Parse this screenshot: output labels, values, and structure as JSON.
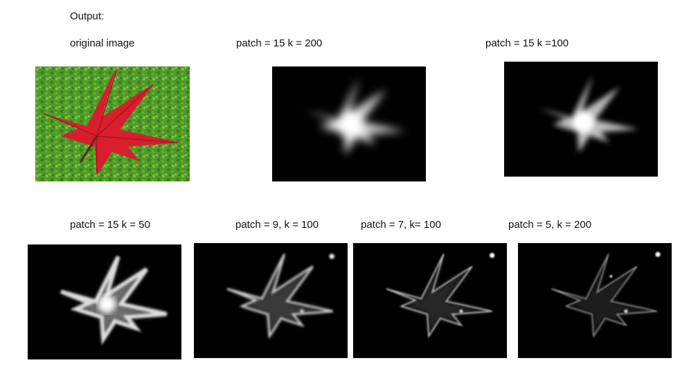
{
  "heading": "Output:",
  "panels": [
    {
      "id": "original",
      "label": "original image"
    },
    {
      "id": "p15k200",
      "label": "patch = 15 k = 200"
    },
    {
      "id": "p15k100",
      "label": "patch = 15 k =100"
    },
    {
      "id": "p15k50",
      "label": "patch = 15 k = 50"
    },
    {
      "id": "p9k100",
      "label": "patch = 9, k = 100"
    },
    {
      "id": "p7k100",
      "label": "patch = 7, k= 100"
    },
    {
      "id": "p5k200",
      "label": "patch = 5, k = 200"
    }
  ],
  "colors": {
    "grass": "#4f9a2a",
    "leaf": "#d81e2c",
    "map_bg": "#000000",
    "map_fg": "#ffffff"
  }
}
